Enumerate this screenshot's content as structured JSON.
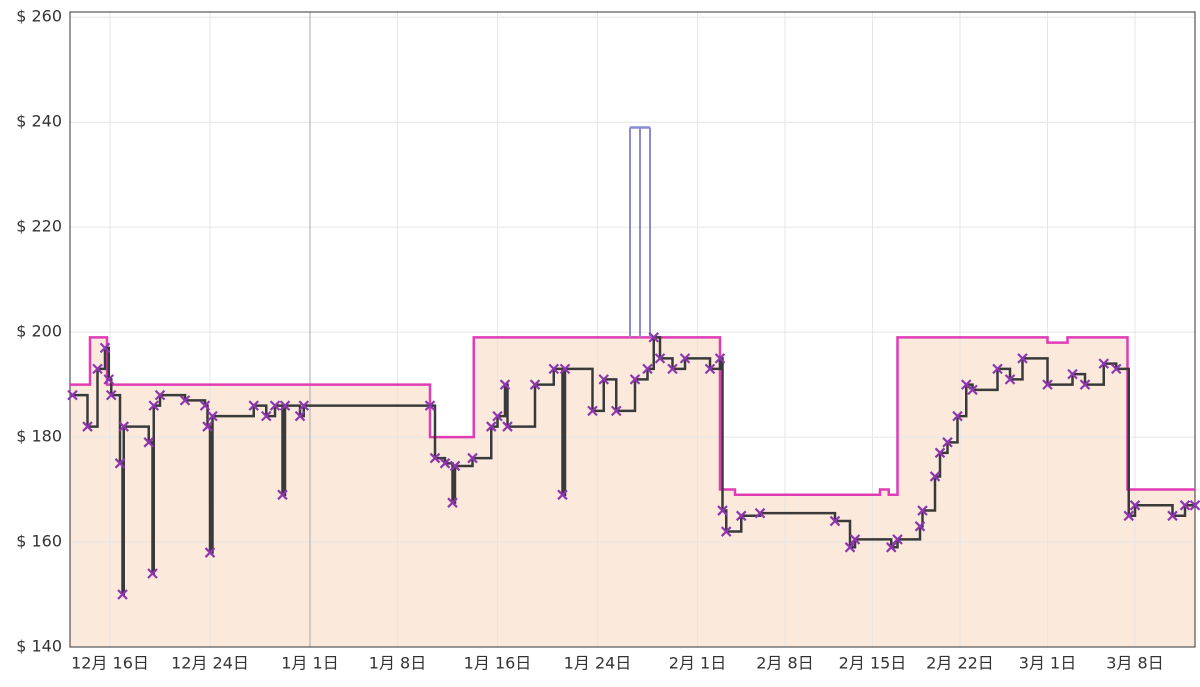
{
  "chart_data": {
    "type": "line",
    "xlim": [
      -3.2,
      86.8
    ],
    "ylim": [
      140,
      261
    ],
    "xticks": [
      {
        "value": 0,
        "label": "12月 16日"
      },
      {
        "value": 8,
        "label": "12月 24日"
      },
      {
        "value": 16,
        "label": "1月 1日"
      },
      {
        "value": 23,
        "label": "1月 8日"
      },
      {
        "value": 31,
        "label": "1月 16日"
      },
      {
        "value": 39,
        "label": "1月 24日"
      },
      {
        "value": 47,
        "label": "2月 1日"
      },
      {
        "value": 54,
        "label": "2月 8日"
      },
      {
        "value": 61,
        "label": "2月 15日"
      },
      {
        "value": 68,
        "label": "2月 22日"
      },
      {
        "value": 75,
        "label": "3月 1日"
      },
      {
        "value": 82,
        "label": "3月 8日"
      }
    ],
    "yticks": [
      {
        "value": 140,
        "label": "$ 140"
      },
      {
        "value": 160,
        "label": "$ 160"
      },
      {
        "value": 180,
        "label": "$ 180"
      },
      {
        "value": 200,
        "label": "$ 200"
      },
      {
        "value": 220,
        "label": "$ 220"
      },
      {
        "value": 240,
        "label": "$ 240"
      },
      {
        "value": 260,
        "label": "$ 260"
      }
    ],
    "grid": true,
    "series": [
      {
        "color": "#e03cb4",
        "fill": "#fbeadb",
        "step": true,
        "x": [
          -3.2,
          -1.6,
          -0.24,
          25.6,
          29.1,
          48.8,
          50.0,
          61.6,
          62.3,
          63.0,
          75.0,
          76.6,
          81.4,
          86.8
        ],
        "values": [
          190,
          199,
          190,
          180,
          199,
          170,
          169,
          170,
          169,
          199,
          198,
          199,
          170,
          170
        ]
      },
      {
        "color": "#8c8cd6",
        "step": true,
        "drop": true,
        "x": [
          41.6,
          42.4,
          43.2
        ],
        "values": [
          239,
          239,
          239
        ]
      },
      {
        "color": "#3a3a3a",
        "step": true,
        "marker": "x",
        "marker_color": "#8e35b0",
        "x": [
          -3.0,
          -1.8,
          -1.0,
          -0.4,
          -0.1,
          0.1,
          0.8,
          1.0,
          1.1,
          3.1,
          3.4,
          3.5,
          4.0,
          6.0,
          7.6,
          7.8,
          8.0,
          8.2,
          11.5,
          12.5,
          13.2,
          13.8,
          14.0,
          15.2,
          15.5,
          25.6,
          26.0,
          26.8,
          27.4,
          27.6,
          29.0,
          30.5,
          31.0,
          31.6,
          31.8,
          34.0,
          35.5,
          36.2,
          36.4,
          38.6,
          39.5,
          40.5,
          42.0,
          43.0,
          43.5,
          44.0,
          45.0,
          46.0,
          48.0,
          48.8,
          49.0,
          49.3,
          50.5,
          52.0,
          58.0,
          59.2,
          59.6,
          62.5,
          63.0,
          64.8,
          65.0,
          66.0,
          66.4,
          67.0,
          67.8,
          68.5,
          69.0,
          71.0,
          72.0,
          73.0,
          75.0,
          77.0,
          78.0,
          79.5,
          80.5,
          81.5,
          82.0,
          85.0,
          86.0,
          86.8
        ],
        "values": [
          188,
          182,
          193,
          197,
          191,
          188,
          175,
          150,
          182,
          179,
          154,
          186,
          188,
          187,
          186,
          182,
          158,
          184,
          186,
          184,
          186,
          169,
          186,
          184,
          186,
          186,
          176,
          175,
          167.5,
          174.5,
          176,
          182,
          184,
          190,
          182,
          190,
          193,
          169,
          193,
          185,
          191,
          185,
          191,
          193,
          199,
          195,
          193,
          195,
          193,
          195,
          166,
          162,
          165,
          165.5,
          164,
          159,
          160.5,
          159,
          160.5,
          163,
          166,
          172.5,
          177,
          179,
          184,
          190,
          189,
          193,
          191,
          195,
          190,
          192,
          190,
          194,
          193,
          165,
          167,
          165,
          167,
          167
        ]
      }
    ]
  }
}
